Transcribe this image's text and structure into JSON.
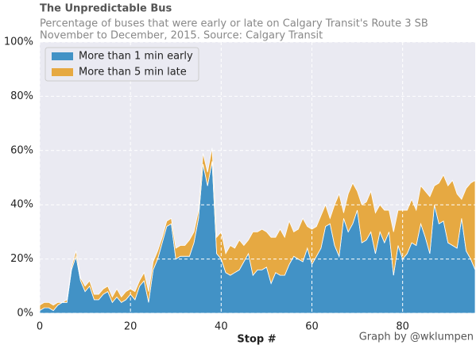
{
  "chart_data": {
    "type": "stacked-area",
    "title": "The Unpredictable Bus",
    "subtitle": [
      "Percentage of buses that were early or late on Calgary Transit's Route 3 SB",
      "November to December, 2015. Source: Calgary Transit"
    ],
    "x_label": "Stop #",
    "credit": "Graph by @wklumpen",
    "x": [
      0,
      1,
      2,
      3,
      4,
      5,
      6,
      7,
      8,
      9,
      10,
      11,
      12,
      13,
      14,
      15,
      16,
      17,
      18,
      19,
      20,
      21,
      22,
      23,
      24,
      25,
      26,
      27,
      28,
      29,
      30,
      31,
      32,
      33,
      34,
      35,
      36,
      37,
      38,
      39,
      40,
      41,
      42,
      43,
      44,
      45,
      46,
      47,
      48,
      49,
      50,
      51,
      52,
      53,
      54,
      55,
      56,
      57,
      58,
      59,
      60,
      61,
      62,
      63,
      64,
      65,
      66,
      67,
      68,
      69,
      70,
      71,
      72,
      73,
      74,
      75,
      76,
      77,
      78,
      79,
      80,
      81,
      82,
      83,
      84,
      85,
      86,
      87,
      88,
      89,
      90,
      91,
      92,
      93,
      94,
      95,
      96
    ],
    "series": [
      {
        "name": "More than 1 min early",
        "color": "#4292c6",
        "values": [
          1,
          2,
          2,
          1,
          3,
          4,
          4,
          16,
          21,
          12,
          8,
          10,
          5,
          5,
          7,
          8,
          4,
          6,
          4,
          5,
          7,
          5,
          10,
          12,
          4,
          16,
          20,
          26,
          32,
          33,
          20,
          21,
          21,
          21,
          26,
          35,
          55,
          47,
          56,
          22,
          20,
          15,
          14,
          15,
          16,
          19,
          22,
          14,
          16,
          16,
          17,
          11,
          15,
          14,
          14,
          18,
          21,
          20,
          19,
          24,
          18,
          21,
          24,
          32,
          33,
          25,
          21,
          35,
          30,
          33,
          38,
          26,
          27,
          30,
          22,
          30,
          26,
          30,
          14,
          25,
          20,
          22,
          26,
          25,
          33,
          28,
          22,
          40,
          33,
          34,
          26,
          25,
          24,
          35,
          23,
          20,
          16
        ]
      },
      {
        "name": "More than 5 min late",
        "color": "#e6a942",
        "values": [
          2,
          2,
          2,
          2,
          1,
          0,
          1,
          1,
          2,
          1,
          2,
          2,
          2,
          2,
          2,
          2,
          2,
          3,
          2,
          3,
          2,
          3,
          2,
          3,
          4,
          3,
          3,
          2,
          2,
          2,
          4,
          4,
          4,
          6,
          4,
          3,
          4,
          5,
          5,
          6,
          10,
          7,
          11,
          9,
          11,
          6,
          5,
          16,
          14,
          15,
          13,
          17,
          13,
          17,
          14,
          16,
          9,
          11,
          16,
          8,
          13,
          11,
          12,
          8,
          2,
          15,
          23,
          2,
          14,
          15,
          7,
          14,
          14,
          15,
          15,
          10,
          12,
          8,
          16,
          13,
          18,
          16,
          16,
          13,
          14,
          17,
          21,
          7,
          15,
          17,
          21,
          24,
          20,
          7,
          23,
          28,
          33
        ]
      }
    ],
    "xlim": [
      0,
      96
    ],
    "xticks": [
      0,
      20,
      40,
      60,
      80
    ],
    "ylim": [
      0,
      100
    ],
    "yticks": [
      {
        "value": 0,
        "label": "0%"
      },
      {
        "value": 20,
        "label": "20%"
      },
      {
        "value": 40,
        "label": "40%"
      },
      {
        "value": 60,
        "label": "60%"
      },
      {
        "value": 80,
        "label": "80%"
      },
      {
        "value": 100,
        "label": "100%"
      }
    ],
    "grid": true,
    "legend": "upper left"
  }
}
